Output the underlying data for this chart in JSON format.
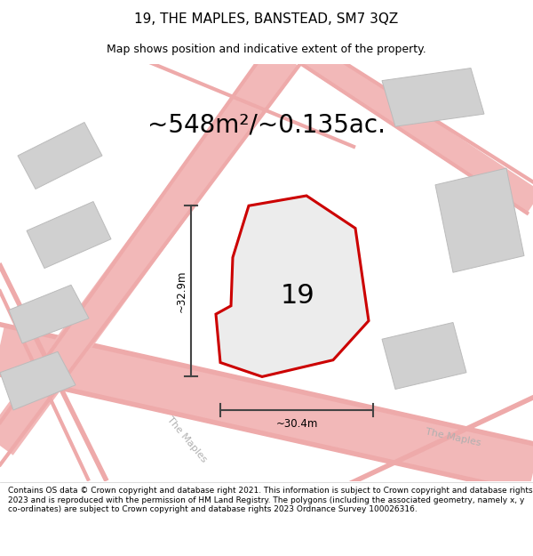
{
  "title": "19, THE MAPLES, BANSTEAD, SM7 3QZ",
  "subtitle": "Map shows position and indicative extent of the property.",
  "area_label": "~548m²/~0.135ac.",
  "number_label": "19",
  "dim_h_label": "~32.9m",
  "dim_w_label": "~30.4m",
  "footer": "Contains OS data © Crown copyright and database right 2021. This information is subject to Crown copyright and database rights 2023 and is reproduced with the permission of HM Land Registry. The polygons (including the associated geometry, namely x, y co-ordinates) are subject to Crown copyright and database rights 2023 Ordnance Survey 100026316.",
  "road_color": "#f2b8b8",
  "road_color2": "#eeaaaa",
  "building_color": "#d0d0d0",
  "building_edge": "#bbbbbb",
  "plot_fill": "#ececec",
  "plot_edge": "#cc0000",
  "dim_line_color": "#444444",
  "road_label_color": "#b0b0b0",
  "title_fontsize": 11,
  "subtitle_fontsize": 9,
  "area_fontsize": 20,
  "number_fontsize": 22,
  "dim_fontsize": 8.5,
  "road_label_fontsize": 8,
  "footer_fontsize": 6.5
}
